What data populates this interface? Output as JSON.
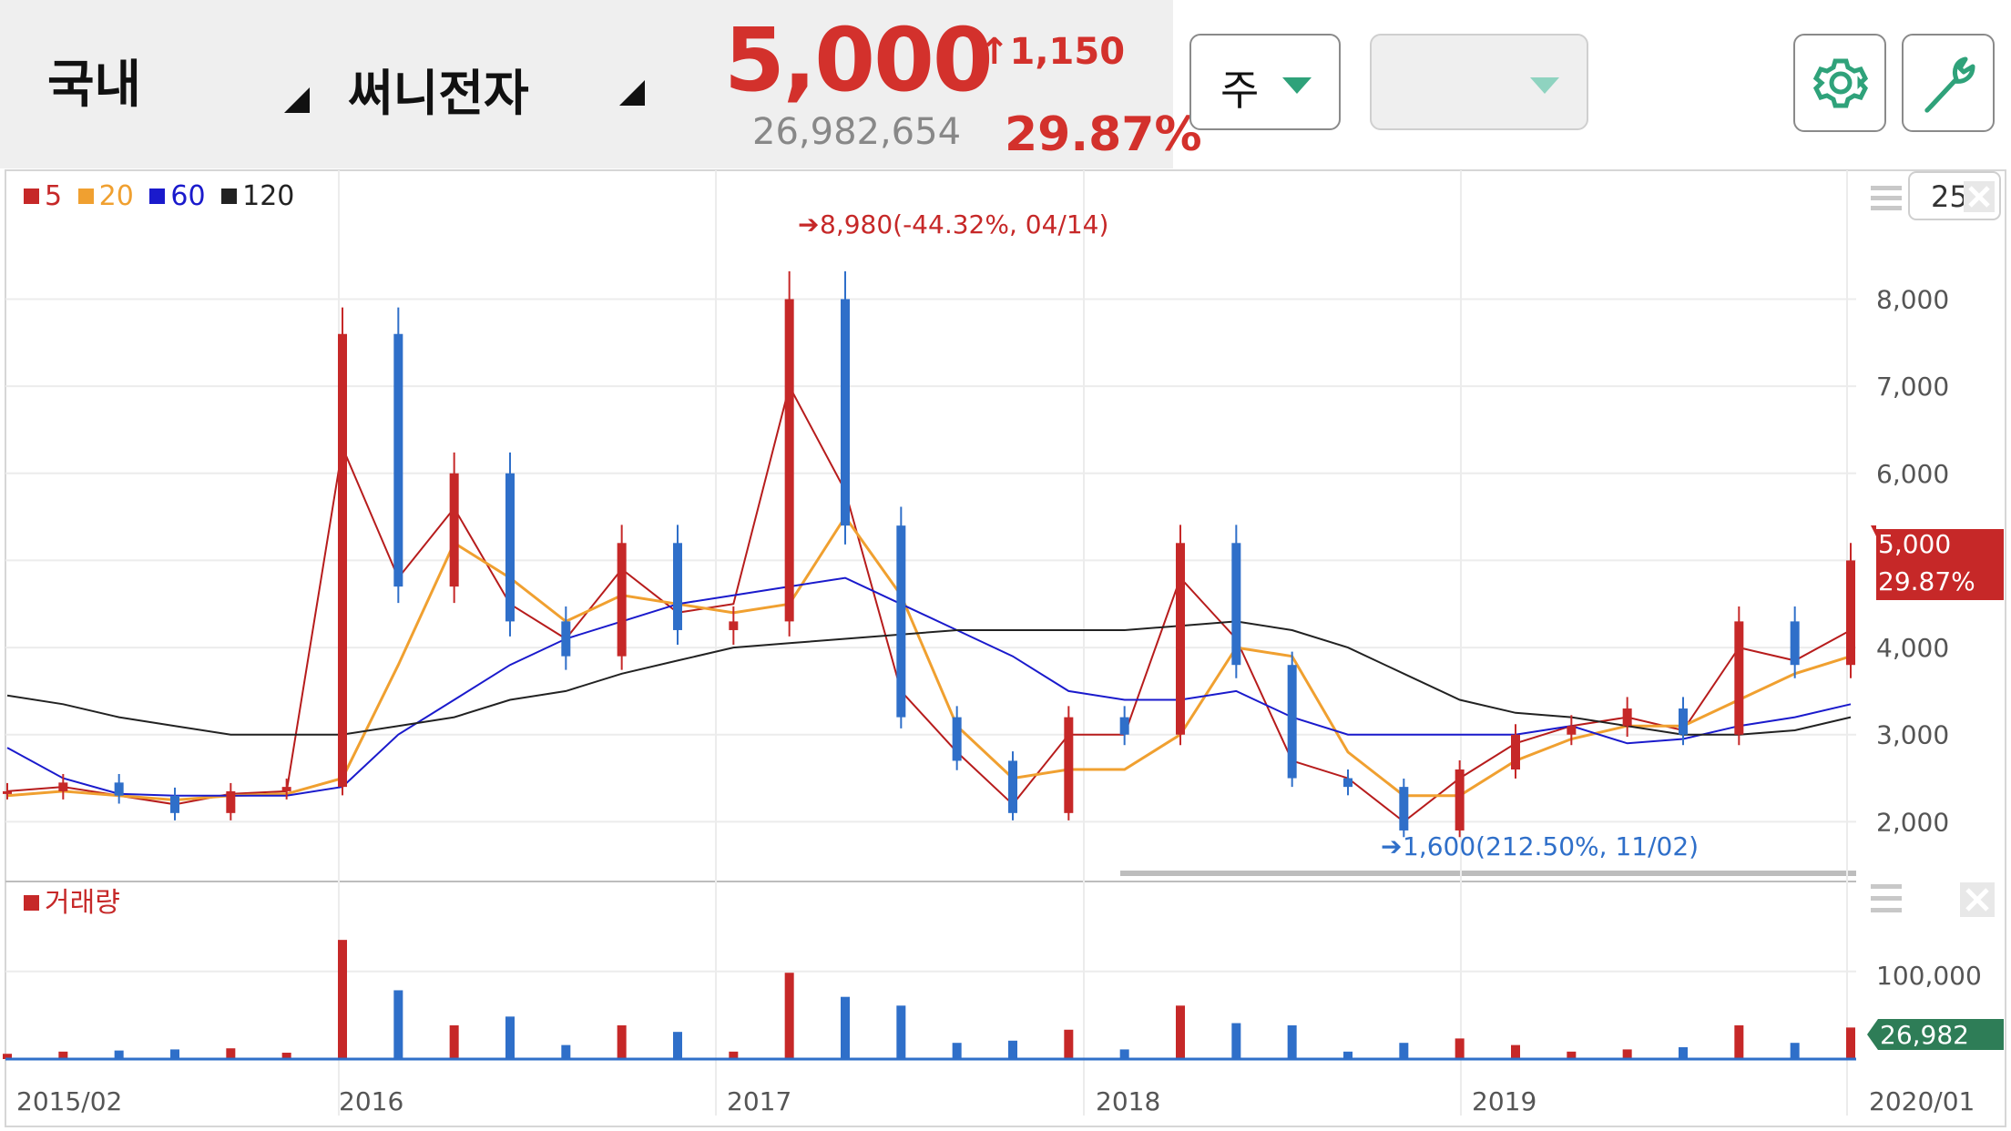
{
  "header": {
    "market": "국내",
    "stock_name": "써니전자",
    "price": "5,000",
    "change": "1,150",
    "volume": "26,982,654",
    "change_percent": "29.87%",
    "period_select": "주",
    "secondary_select": ""
  },
  "icons": {
    "settings": "gear-icon",
    "tools": "wrench-icon",
    "menu": "hamburger-icon",
    "close": "close-icon"
  },
  "colors": {
    "up": "#c62828",
    "down": "#2f6fc9",
    "ma5": "#b71c1c",
    "ma20": "#f0a030",
    "ma60": "#1a1acc",
    "ma120": "#222222",
    "volume_badge": "#2e7d57"
  },
  "legend": [
    {
      "label": "5",
      "color": "#c62828"
    },
    {
      "label": "20",
      "color": "#f0a030"
    },
    {
      "label": "60",
      "color": "#1a1acc"
    },
    {
      "label": "120",
      "color": "#222222"
    }
  ],
  "counter": "255",
  "volume_legend": "거래량",
  "chart_data": {
    "type": "candlestick",
    "x_labels": [
      "2015/02",
      "2016",
      "2017",
      "2018",
      "2019",
      "2020/01"
    ],
    "y_ticks": [
      "8,000",
      "7,000",
      "6,000",
      "5,000",
      "4,000",
      "3,000",
      "2,000"
    ],
    "ylim": [
      1450,
      9500
    ],
    "current_price_label": "5,000",
    "current_pct_label": "29.87%",
    "high_annotation": {
      "text": "8,980(-44.32%, 04/14)",
      "value": 8980
    },
    "low_annotation": {
      "text": "1,600(212.50%, 11/02)",
      "value": 1600
    },
    "volume": {
      "y_tick": "100,000",
      "current_label": "26,982",
      "ylim": [
        0,
        185000
      ]
    },
    "series_close": [
      {
        "x": "2015/02",
        "y": 2350
      },
      {
        "x": "2015/04",
        "y": 2450
      },
      {
        "x": "2015/06",
        "y": 2300
      },
      {
        "x": "2015/07",
        "y": 2100
      },
      {
        "x": "2015/09",
        "y": 2350
      },
      {
        "x": "2015/11",
        "y": 2400
      },
      {
        "x": "2015/12",
        "y": 7600
      },
      {
        "x": "2016/02",
        "y": 4700
      },
      {
        "x": "2016/03",
        "y": 6000
      },
      {
        "x": "2016/05",
        "y": 4300
      },
      {
        "x": "2016/07",
        "y": 3900
      },
      {
        "x": "2016/09",
        "y": 5200
      },
      {
        "x": "2016/11",
        "y": 4200
      },
      {
        "x": "2016/12",
        "y": 4300
      },
      {
        "x": "2017/02",
        "y": 8000
      },
      {
        "x": "2017/04",
        "y": 5400
      },
      {
        "x": "2017/05",
        "y": 3200
      },
      {
        "x": "2017/07",
        "y": 2700
      },
      {
        "x": "2017/09",
        "y": 2100
      },
      {
        "x": "2017/11",
        "y": 3200
      },
      {
        "x": "2018/01",
        "y": 3000
      },
      {
        "x": "2018/02",
        "y": 5200
      },
      {
        "x": "2018/04",
        "y": 3800
      },
      {
        "x": "2018/06",
        "y": 2500
      },
      {
        "x": "2018/08",
        "y": 2400
      },
      {
        "x": "2018/10",
        "y": 1900
      },
      {
        "x": "2018/12",
        "y": 2600
      },
      {
        "x": "2019/02",
        "y": 3000
      },
      {
        "x": "2019/04",
        "y": 3100
      },
      {
        "x": "2019/06",
        "y": 3300
      },
      {
        "x": "2019/08",
        "y": 3000
      },
      {
        "x": "2019/09",
        "y": 4300
      },
      {
        "x": "2019/11",
        "y": 3800
      },
      {
        "x": "2020/01",
        "y": 5000
      }
    ],
    "ma_series": [
      {
        "name": "5",
        "values": [
          2350,
          2400,
          2300,
          2200,
          2320,
          2350,
          6300,
          4800,
          5600,
          4500,
          4100,
          4900,
          4400,
          4500,
          7000,
          5800,
          3500,
          2800,
          2200,
          3000,
          3000,
          4800,
          4100,
          2700,
          2500,
          2000,
          2500,
          2900,
          3100,
          3200,
          3050,
          4000,
          3850,
          4200
        ]
      },
      {
        "name": "20",
        "values": [
          2300,
          2350,
          2300,
          2250,
          2300,
          2320,
          2500,
          3800,
          5200,
          4800,
          4300,
          4600,
          4500,
          4400,
          4500,
          5500,
          4600,
          3100,
          2500,
          2600,
          2600,
          3000,
          4000,
          3900,
          2800,
          2300,
          2300,
          2700,
          2950,
          3100,
          3100,
          3400,
          3700,
          3900
        ]
      },
      {
        "name": "60",
        "values": [
          2850,
          2500,
          2320,
          2300,
          2300,
          2300,
          2400,
          3000,
          3400,
          3800,
          4100,
          4300,
          4500,
          4600,
          4700,
          4800,
          4500,
          4200,
          3900,
          3500,
          3400,
          3400,
          3500,
          3200,
          3000,
          3000,
          3000,
          3000,
          3100,
          2900,
          2950,
          3100,
          3200,
          3350
        ]
      },
      {
        "name": "120",
        "values": [
          3450,
          3350,
          3200,
          3100,
          3000,
          3000,
          3000,
          3100,
          3200,
          3400,
          3500,
          3700,
          3850,
          4000,
          4050,
          4100,
          4150,
          4200,
          4200,
          4200,
          4200,
          4250,
          4300,
          4200,
          4000,
          3700,
          3400,
          3250,
          3200,
          3100,
          3000,
          3000,
          3050,
          3200
        ]
      }
    ]
  }
}
